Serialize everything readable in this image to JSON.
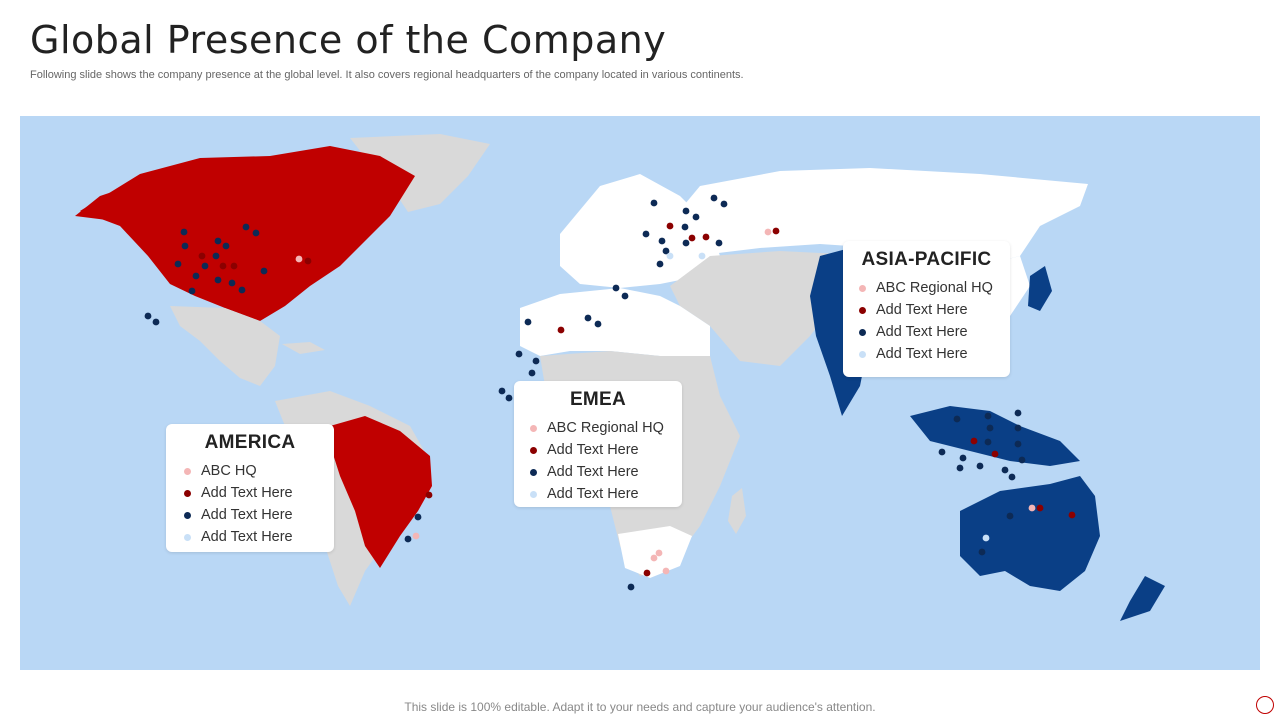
{
  "slide": {
    "title": "Global Presence of the Company",
    "subtitle": "Following slide shows the company presence at the global level. It also covers regional headquarters of the company located in various continents.",
    "footer": "This slide is 100% editable. Adapt it to your needs and capture your audience's attention."
  },
  "colors": {
    "panel_background": "#b9d7f5",
    "land_neutral": "#d9d9d9",
    "land_white": "#ffffff",
    "america_region": "#c00000",
    "asia_pacific_region": "#0a3f86",
    "dot_light_red": "#f4b6b6",
    "dot_dark_red": "#8b0000",
    "dot_navy": "#0d2a55",
    "dot_light_blue": "#c9e0f7"
  },
  "legends": {
    "america": {
      "title": "AMERICA",
      "items": [
        {
          "label": "ABC HQ",
          "dot": "dot_light_red"
        },
        {
          "label": "Add Text Here",
          "dot": "dot_dark_red"
        },
        {
          "label": "Add Text Here",
          "dot": "dot_navy"
        },
        {
          "label": "Add Text Here",
          "dot": "dot_light_blue"
        }
      ]
    },
    "emea": {
      "title": "EMEA",
      "items": [
        {
          "label": "ABC Regional HQ",
          "dot": "dot_light_red"
        },
        {
          "label": "Add Text Here",
          "dot": "dot_dark_red"
        },
        {
          "label": "Add Text Here",
          "dot": "dot_navy"
        },
        {
          "label": "Add Text Here",
          "dot": "dot_light_blue"
        }
      ]
    },
    "asia_pacific": {
      "title": "ASIA-PACIFIC",
      "items": [
        {
          "label": "ABC Regional HQ",
          "dot": "dot_light_red"
        },
        {
          "label": "Add Text Here",
          "dot": "dot_dark_red"
        },
        {
          "label": "Add Text Here",
          "dot": "dot_navy"
        },
        {
          "label": "Add Text Here",
          "dot": "dot_light_blue"
        }
      ]
    }
  }
}
